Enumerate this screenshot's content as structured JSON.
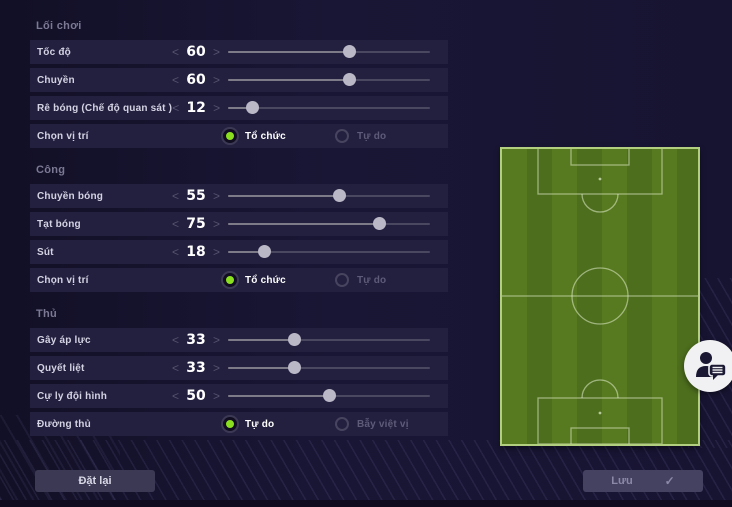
{
  "panel": {
    "sections": [
      {
        "header": "Lối chơi",
        "rows": [
          {
            "type": "slider",
            "label": "Tốc độ",
            "value": 60
          },
          {
            "type": "slider",
            "label": "Chuyền",
            "value": 60
          },
          {
            "type": "slider",
            "label": "Rê bóng (Chế độ quan sát )",
            "value": 12
          },
          {
            "type": "radio",
            "label": "Chọn vị trí",
            "options": [
              {
                "label": "Tổ chức",
                "selected": true
              },
              {
                "label": "Tự do",
                "selected": false
              }
            ]
          }
        ]
      },
      {
        "header": "Công",
        "rows": [
          {
            "type": "slider",
            "label": "Chuyền bóng",
            "value": 55
          },
          {
            "type": "slider",
            "label": "Tạt bóng",
            "value": 75
          },
          {
            "type": "slider",
            "label": "Sút",
            "value": 18
          },
          {
            "type": "radio",
            "label": "Chọn vị trí",
            "options": [
              {
                "label": "Tổ chức",
                "selected": true
              },
              {
                "label": "Tự do",
                "selected": false
              }
            ]
          }
        ]
      },
      {
        "header": "Thủ",
        "rows": [
          {
            "type": "slider",
            "label": "Gây áp lực",
            "value": 33
          },
          {
            "type": "slider",
            "label": "Quyết liệt",
            "value": 33
          },
          {
            "type": "slider",
            "label": "Cự ly đội hình",
            "value": 50
          },
          {
            "type": "radio",
            "label": "Đường thủ",
            "options": [
              {
                "label": "Tự do",
                "selected": true
              },
              {
                "label": "Bẫy việt vị",
                "selected": false
              }
            ]
          }
        ]
      }
    ]
  },
  "buttons": {
    "reset": "Đặt lại",
    "save": "Lưu"
  },
  "glyphs": {
    "chevron_left": "<",
    "chevron_right": ">",
    "check": "✓",
    "coach_chat": "person-with-speech-bubble-icon"
  },
  "pitch": {
    "type": "football-field-preview"
  },
  "colors": {
    "radio_active": "#8ae01f",
    "pitch_green_light": "#57791f",
    "pitch_green_dark": "#4d6e1d",
    "row_bg": "#23203f",
    "slider_handle": "#bab8c7",
    "value_text": "#ffffff"
  }
}
